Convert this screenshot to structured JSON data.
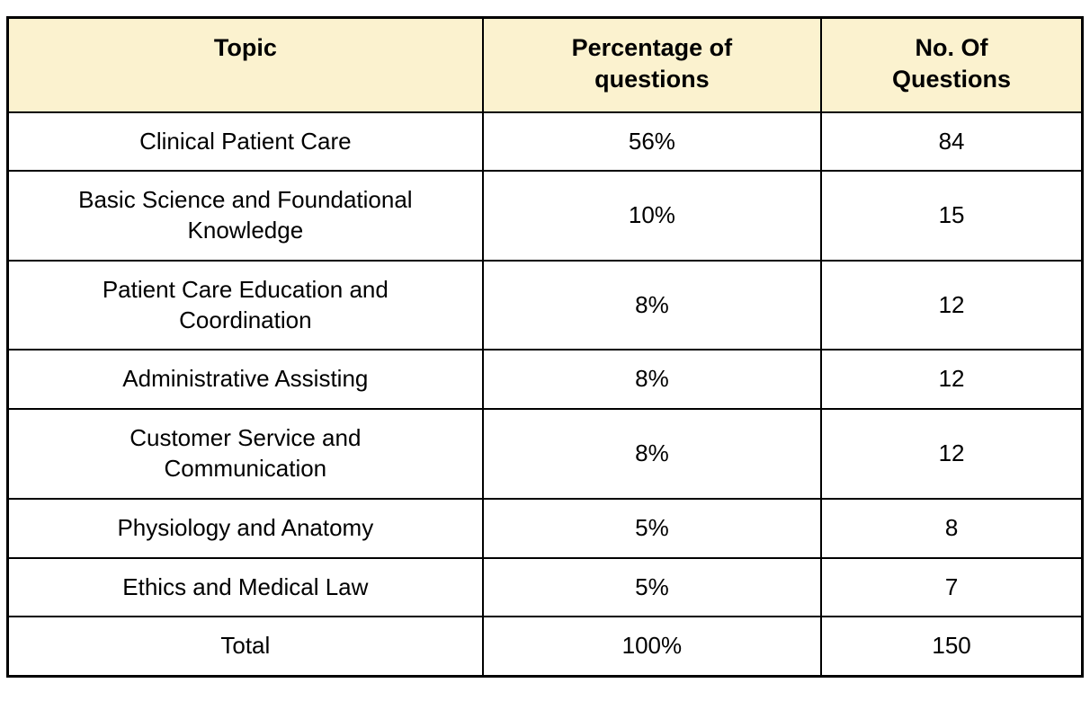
{
  "table": {
    "columns": [
      {
        "label": "Topic"
      },
      {
        "label": "Percentage of\nquestions"
      },
      {
        "label": "No. Of\nQuestions"
      }
    ],
    "rows": [
      {
        "topic": "Clinical Patient Care",
        "percentage": "56%",
        "questions": "84"
      },
      {
        "topic": "Basic Science and Foundational\nKnowledge",
        "percentage": "10%",
        "questions": "15"
      },
      {
        "topic": "Patient Care Education and\nCoordination",
        "percentage": "8%",
        "questions": "12"
      },
      {
        "topic": "Administrative Assisting",
        "percentage": "8%",
        "questions": "12"
      },
      {
        "topic": "Customer Service and\nCommunication",
        "percentage": "8%",
        "questions": "12"
      },
      {
        "topic": "Physiology and Anatomy",
        "percentage": "5%",
        "questions": "8"
      },
      {
        "topic": "Ethics and Medical Law",
        "percentage": "5%",
        "questions": "7"
      },
      {
        "topic": "Total",
        "percentage": "100%",
        "questions": "150"
      }
    ],
    "totals_row_label": "Total",
    "colors": {
      "header_background": "#FBF2CF",
      "border": "#000000",
      "text": "#000000",
      "row_background": "#FFFFFF"
    }
  }
}
